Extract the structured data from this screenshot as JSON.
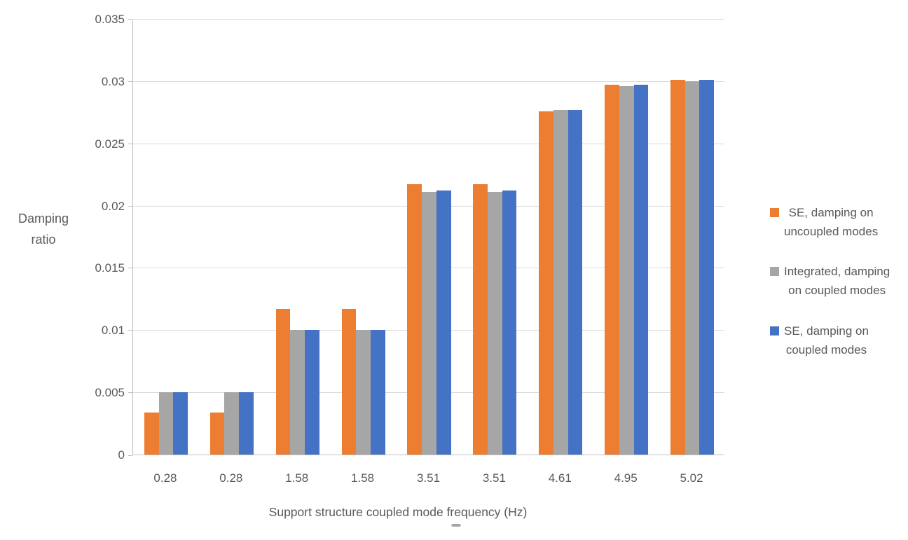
{
  "chart_data": {
    "type": "bar",
    "title": "",
    "xlabel": "Support structure coupled mode frequency (Hz)",
    "ylabel": "Damping ratio",
    "ylabel_lines": [
      "Damping",
      "ratio"
    ],
    "categories": [
      "0.28",
      "0.28",
      "1.58",
      "1.58",
      "3.51",
      "3.51",
      "4.61",
      "4.95",
      "5.02"
    ],
    "series": [
      {
        "name": "SE, damping on uncoupled modes",
        "color": "#ED7D31",
        "values": [
          0.0034,
          0.0034,
          0.0117,
          0.0117,
          0.0217,
          0.0217,
          0.0276,
          0.0297,
          0.0301
        ]
      },
      {
        "name": "Integrated, damping on coupled modes",
        "color": "#A6A6A6",
        "values": [
          0.005,
          0.005,
          0.01,
          0.01,
          0.0211,
          0.0211,
          0.0277,
          0.0296,
          0.03
        ]
      },
      {
        "name": "SE, damping on coupled modes",
        "color": "#4472C4",
        "values": [
          0.005,
          0.005,
          0.01,
          0.01,
          0.0212,
          0.0212,
          0.0277,
          0.0297,
          0.0301
        ]
      }
    ],
    "ylim": [
      0,
      0.035
    ],
    "ytick_step": 0.005,
    "ytick_labels": [
      "0",
      "0.005",
      "0.01",
      "0.015",
      "0.02",
      "0.025",
      "0.03",
      "0.035"
    ],
    "grid": true,
    "legend_position": "right"
  },
  "legend": {
    "items": [
      {
        "color": "#ED7D31",
        "label_lines": [
          "SE, damping on",
          "uncoupled modes"
        ]
      },
      {
        "color": "#A6A6A6",
        "label_lines": [
          "Integrated, damping",
          "on coupled modes"
        ]
      },
      {
        "color": "#4472C4",
        "label_lines": [
          "SE, damping on",
          "coupled modes"
        ]
      }
    ]
  },
  "colors": {
    "gridline": "#D9D9D9",
    "axis_line": "#BFBFBF",
    "text": "#595959",
    "background": "#FFFFFF"
  }
}
